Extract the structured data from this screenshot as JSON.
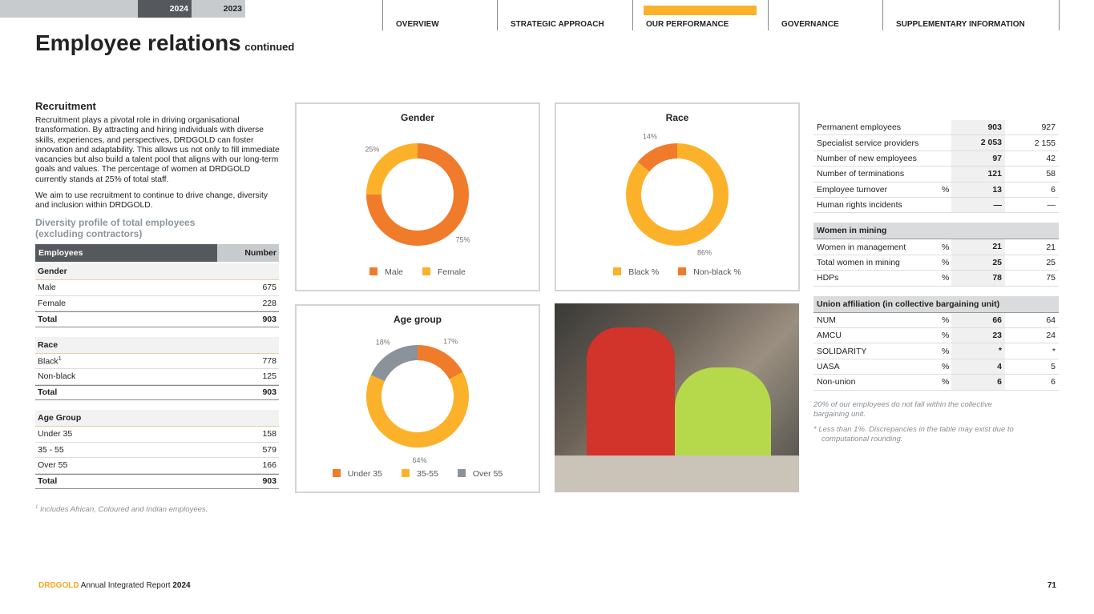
{
  "nav": [
    "OVERVIEW",
    "STRATEGIC APPROACH",
    "OUR PERFORMANCE",
    "GOVERNANCE",
    "SUPPLEMENTARY INFORMATION"
  ],
  "title": "Employee relations",
  "title_suffix": "continued",
  "recruitment": {
    "heading": "Recruitment",
    "paragraphs": [
      "Recruitment plays a pivotal role in driving organisational transformation. By attracting and hiring individuals with diverse skills, experiences, and perspectives, DRDGOLD can foster innovation and adaptability. This allows us not only to fill immediate vacancies but also build a talent pool that aligns with our long-term goals and values. The percentage of women at DRDGOLD currently stands at 25% of total staff.",
      "We aim to use recruitment to continue to drive change, diversity and inclusion within DRDGOLD."
    ]
  },
  "diversity": {
    "heading": "Diversity profile of total employees (excluding contractors)",
    "header": [
      "Employees",
      "Number"
    ],
    "sections": [
      {
        "title": "Gender",
        "rows": [
          {
            "label": "Male",
            "value": 675
          },
          {
            "label": "Female",
            "value": 228
          }
        ],
        "total": {
          "label": "Total",
          "value": 903
        }
      },
      {
        "title": "Race",
        "rows": [
          {
            "label": "Black",
            "note": "1",
            "value": 778
          },
          {
            "label": "Non-black",
            "value": 125
          }
        ],
        "total": {
          "label": "Total",
          "value": 903
        }
      },
      {
        "title": "Age Group",
        "rows": [
          {
            "label": "Under 35",
            "value": 158
          },
          {
            "label": "35 - 55",
            "value": 579
          },
          {
            "label": "Over 55",
            "value": 166
          }
        ],
        "total": {
          "label": "Total",
          "value": 903
        }
      }
    ],
    "footnote": {
      "marker": "1",
      "text": "Includes African, Coloured and Indian employees."
    }
  },
  "charts": [
    {
      "type": "donut",
      "title": "Gender",
      "categories": [
        "Male",
        "Female"
      ],
      "values": [
        75,
        25
      ],
      "value_labels": [
        "75%",
        "25%"
      ],
      "colors": [
        "#f07b2b",
        "#fbb22a"
      ]
    },
    {
      "type": "donut",
      "title": "Race",
      "categories": [
        "Black %",
        "Non-black %"
      ],
      "values": [
        86,
        14
      ],
      "value_labels": [
        "86%",
        "14%"
      ],
      "colors": [
        "#fbb22a",
        "#f07b2b"
      ]
    },
    {
      "type": "donut",
      "title": "Age group",
      "categories": [
        "Under 35",
        "35-55",
        "Over 55"
      ],
      "values": [
        17,
        64,
        18
      ],
      "value_labels": [
        "17%",
        "64%",
        "18%"
      ],
      "colors": [
        "#f07b2b",
        "#fbb22a",
        "#8a939b"
      ]
    }
  ],
  "stats_table": {
    "columns": [
      "2024",
      "2023"
    ],
    "rows": [
      {
        "label": "Permanent employees",
        "values": [
          903,
          927
        ]
      },
      {
        "label": "Specialist service providers",
        "values": [
          "2 053",
          "2 155"
        ]
      },
      {
        "label": "Number of new employees",
        "values": [
          97,
          42
        ]
      },
      {
        "label": "Number of terminations",
        "values": [
          121,
          58
        ]
      },
      {
        "label": "Employee turnover",
        "unit": "%",
        "values": [
          13,
          6
        ]
      },
      {
        "label": "Human rights incidents",
        "values": [
          "—",
          "—"
        ]
      }
    ],
    "sections": [
      {
        "title": "Women in mining",
        "rows": [
          {
            "label": "Women in management",
            "unit": "%",
            "values": [
              21,
              21
            ]
          },
          {
            "label": "Total women in mining",
            "unit": "%",
            "values": [
              25,
              25
            ]
          },
          {
            "label": "HDPs",
            "unit": "%",
            "values": [
              78,
              75
            ]
          }
        ]
      },
      {
        "title": "Union affiliation (in collective bargaining unit)",
        "rows": [
          {
            "label": "NUM",
            "unit": "%",
            "values": [
              66,
              64
            ]
          },
          {
            "label": "AMCU",
            "unit": "%",
            "values": [
              23,
              24
            ]
          },
          {
            "label": "SOLIDARITY",
            "unit": "%",
            "values": [
              "*",
              "*"
            ]
          },
          {
            "label": "UASA",
            "unit": "%",
            "values": [
              4,
              5
            ]
          },
          {
            "label": "Non-union",
            "unit": "%",
            "values": [
              6,
              6
            ]
          }
        ]
      }
    ],
    "notes": [
      "20% of our employees do not fall within the collective bargaining unit.",
      "* Less than 1%. Discrepancies in the table may exist due to computational rounding."
    ]
  },
  "footer": {
    "brand": "DRDGOLD",
    "report": "Annual Integrated Report",
    "year": "2024",
    "page": "71"
  }
}
